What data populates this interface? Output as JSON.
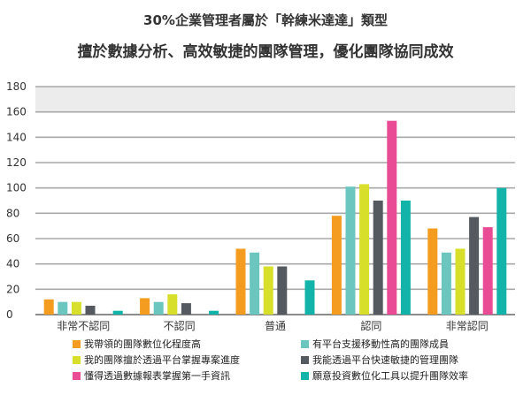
{
  "chart_data": {
    "type": "bar",
    "title": "30%企業管理者屬於「幹練米達達」類型",
    "subtitle": "擅於數據分析、高效敏捷的團隊管理，優化團隊協同成效",
    "categories": [
      "非常不認同",
      "不認同",
      "普通",
      "認同",
      "非常認同"
    ],
    "ylim": [
      0,
      180
    ],
    "yticks": [
      0,
      20,
      40,
      60,
      80,
      100,
      120,
      140,
      160,
      180
    ],
    "grid": true,
    "legend_position": "bottom",
    "series": [
      {
        "name": "我帶領的團隊數位化程度高",
        "color": "#f39c1f",
        "values": [
          12,
          13,
          52,
          78,
          68
        ]
      },
      {
        "name": "有平台支援移動性高的團隊成員",
        "color": "#6cc6c0",
        "values": [
          10,
          10,
          49,
          101,
          49
        ]
      },
      {
        "name": "我的團隊擅於透過平台掌握專案進度",
        "color": "#d7df2a",
        "values": [
          10,
          16,
          38,
          103,
          52
        ]
      },
      {
        "name": "我能透過平台快速敏捷的管理團隊",
        "color": "#555a60",
        "values": [
          7,
          9,
          38,
          90,
          77
        ]
      },
      {
        "name": "懂得透過數據報表掌握第一手資訊",
        "color": "#e94b95",
        "values": [
          0,
          0,
          0,
          153,
          69
        ]
      },
      {
        "name": "願意投資數位化工具以提升團隊效率",
        "color": "#12b3a8",
        "values": [
          3,
          3,
          27,
          90,
          100
        ]
      }
    ]
  }
}
